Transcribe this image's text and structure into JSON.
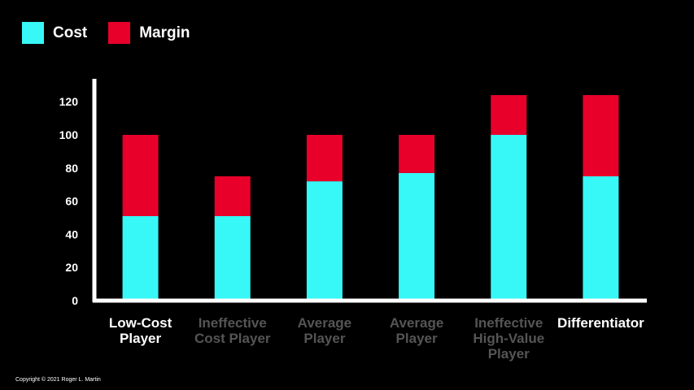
{
  "chart_data": {
    "type": "bar",
    "stacked": true,
    "categories": [
      [
        "Low-Cost",
        "Player"
      ],
      [
        "Ineffective",
        "Cost Player"
      ],
      [
        "Average",
        "Player"
      ],
      [
        "Average",
        "Player"
      ],
      [
        "Ineffective",
        "High-Value",
        "Player"
      ],
      [
        "Differentiator"
      ]
    ],
    "category_colors": [
      "#ffffff",
      "#555555",
      "#555555",
      "#555555",
      "#555555",
      "#ffffff"
    ],
    "series": [
      {
        "name": "Cost",
        "color": "#37f7f7",
        "values": [
          51,
          51,
          72,
          77,
          100,
          75
        ]
      },
      {
        "name": "Margin",
        "color": "#e8002a",
        "values": [
          49,
          24,
          28,
          23,
          24,
          49
        ]
      }
    ],
    "ylim": [
      0,
      130
    ],
    "yticks": [
      0,
      20,
      40,
      60,
      80,
      100,
      120
    ],
    "legend_position": "top-left",
    "axis_color": "#ffffff"
  },
  "legend": [
    {
      "label": "Cost",
      "color": "#37f7f7"
    },
    {
      "label": "Margin",
      "color": "#e8002a"
    }
  ],
  "footer": {
    "copyright": "Copyright © 2021 Roger L. Martin"
  }
}
